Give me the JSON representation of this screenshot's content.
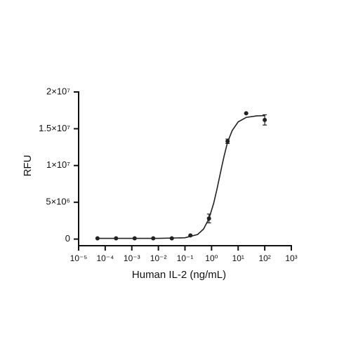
{
  "chart_data": {
    "type": "scatter",
    "x_label": "Human IL-2 (ng/mL)",
    "y_label": "RFU",
    "x": [
      5.12e-05,
      0.000256,
      0.00128,
      0.0064,
      0.032,
      0.16,
      0.8,
      4,
      20,
      100
    ],
    "values": [
      100000,
      100000,
      100000,
      100000,
      100000,
      500000,
      2800000,
      13300000,
      17100000,
      16200000
    ],
    "errors": [
      0,
      0,
      0,
      0,
      0,
      0,
      600000,
      300000,
      0,
      700000
    ],
    "color": "#222222",
    "fit_curve": {
      "x": [
        5e-05,
        0.01,
        0.1,
        0.3,
        0.5,
        0.8,
        1.2,
        1.6,
        2,
        2.5,
        3,
        4,
        6,
        10,
        20,
        50,
        100
      ],
      "values": [
        100000,
        100000,
        180000,
        630000,
        1370000,
        2790000,
        4860000,
        6800000,
        8450000,
        10100000,
        11370000,
        13180000,
        14770000,
        15930000,
        16540000,
        16750000,
        16780000
      ]
    },
    "xscale": "log",
    "xlim": [
      1e-05,
      1000
    ],
    "xticks": [
      {
        "value": 1e-05,
        "label": "10⁻⁵"
      },
      {
        "value": 0.0001,
        "label": "10⁻⁴"
      },
      {
        "value": 0.001,
        "label": "10⁻³"
      },
      {
        "value": 0.01,
        "label": "10⁻²"
      },
      {
        "value": 0.1,
        "label": "10⁻¹"
      },
      {
        "value": 1,
        "label": "10⁰"
      },
      {
        "value": 10,
        "label": "10¹"
      },
      {
        "value": 100,
        "label": "10²"
      },
      {
        "value": 1000,
        "label": "10³"
      }
    ],
    "ylim": [
      -900000,
      20000000
    ],
    "yticks": [
      0,
      {
        "value": 5000000,
        "label": "5×10⁶"
      },
      {
        "value": 10000000,
        "label": "1×10⁷"
      },
      {
        "value": 15000000,
        "label": "1.5×10⁷"
      },
      {
        "value": 20000000,
        "label": "2×10⁷"
      }
    ],
    "grid": false
  }
}
